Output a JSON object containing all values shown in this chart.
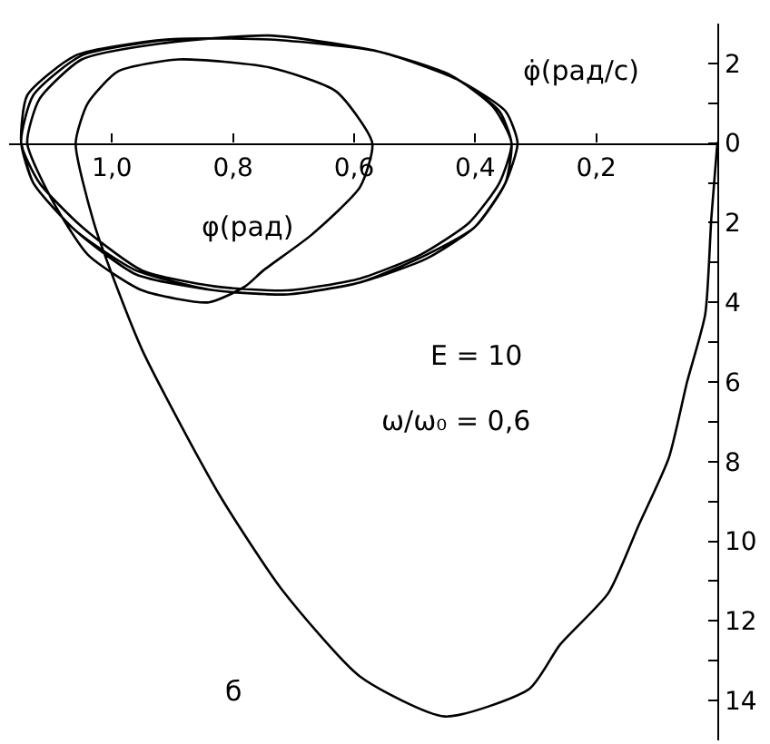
{
  "chart_data": {
    "type": "line",
    "xlabel": "φ(рад)",
    "ylabel": "φ̇(рад/с)",
    "annotations": [
      "E = 10",
      "ω/ω₀ = 0,6",
      "б"
    ],
    "color": "#000000",
    "line_style": "solid",
    "marker": "none",
    "xlim": [
      1.17,
      0
    ],
    "ylim": [
      15,
      -3
    ],
    "xticks": [
      {
        "value": 1.0,
        "label": "1,0"
      },
      {
        "value": 0.8,
        "label": "0,8"
      },
      {
        "value": 0.6,
        "label": "0,6"
      },
      {
        "value": 0.4,
        "label": "0,4"
      },
      {
        "value": 0.2,
        "label": "0,2"
      }
    ],
    "yticks": [
      {
        "value": -2,
        "label": "2"
      },
      {
        "value": -1,
        "label": null
      },
      0,
      {
        "value": 1,
        "label": null
      },
      2,
      {
        "value": 3,
        "label": null
      },
      4,
      {
        "value": 5,
        "label": null
      },
      6,
      {
        "value": 7,
        "label": null
      },
      8,
      {
        "value": 9,
        "label": null
      },
      10,
      {
        "value": 11,
        "label": null
      },
      12,
      {
        "value": 13,
        "label": null
      },
      14
    ],
    "x": [
      0,
      0.01,
      0.02,
      0.05,
      0.08,
      0.13,
      0.18,
      0.26,
      0.31,
      0.45,
      0.59,
      0.72,
      0.82,
      0.91,
      0.95,
      0.99,
      1.03,
      1.06,
      1.04,
      0.99,
      0.89,
      0.74,
      0.63,
      0.57,
      0.59,
      0.67,
      0.75,
      0.78,
      0.84,
      0.95,
      1.04,
      1.1,
      1.14,
      1.12,
      1.05,
      0.92,
      0.74,
      0.56,
      0.44,
      0.37,
      0.34,
      0.36,
      0.41,
      0.49,
      0.59,
      0.71,
      0.83,
      0.95,
      1.05,
      1.12,
      1.15,
      1.13,
      1.05,
      0.9,
      0.74,
      0.56,
      0.43,
      0.36,
      0.34,
      0.35,
      0.4,
      0.48,
      0.59,
      0.71,
      0.83,
      0.96,
      1.06,
      1.13,
      1.15,
      1.14,
      1.06,
      0.91,
      0.74,
      0.56,
      0.43,
      0.35,
      0.33,
      0.35,
      0.4,
      0.48,
      0.59,
      0.71,
      0.83,
      0.96,
      1.06,
      1.13,
      1.15
    ],
    "values": [
      0,
      1.9,
      4.3,
      6.0,
      7.9,
      9.6,
      11.3,
      12.6,
      13.7,
      14.4,
      13.4,
      11.2,
      8.9,
      6.4,
      5.2,
      3.7,
      2.0,
      0,
      -1.0,
      -1.8,
      -2.1,
      -1.9,
      -1.3,
      0,
      1.1,
      2.3,
      3.2,
      3.6,
      4.0,
      3.7,
      2.8,
      1.4,
      0,
      -1.1,
      -2.1,
      -2.5,
      -2.7,
      -2.3,
      -1.7,
      -0.9,
      0,
      1.0,
      2.0,
      2.8,
      3.4,
      3.7,
      3.6,
      3.2,
      2.1,
      1.0,
      0,
      -1.2,
      -2.2,
      -2.6,
      -2.6,
      -2.3,
      -1.6,
      -0.8,
      0,
      1.0,
      2.1,
      2.8,
      3.5,
      3.8,
      3.7,
      3.2,
      2.2,
      1.0,
      0,
      -1.2,
      -2.2,
      -2.6,
      -2.6,
      -2.3,
      -1.6,
      -0.8,
      0,
      1.0,
      2.1,
      2.9,
      3.5,
      3.8,
      3.7,
      3.3,
      2.2,
      1.0,
      0
    ]
  }
}
